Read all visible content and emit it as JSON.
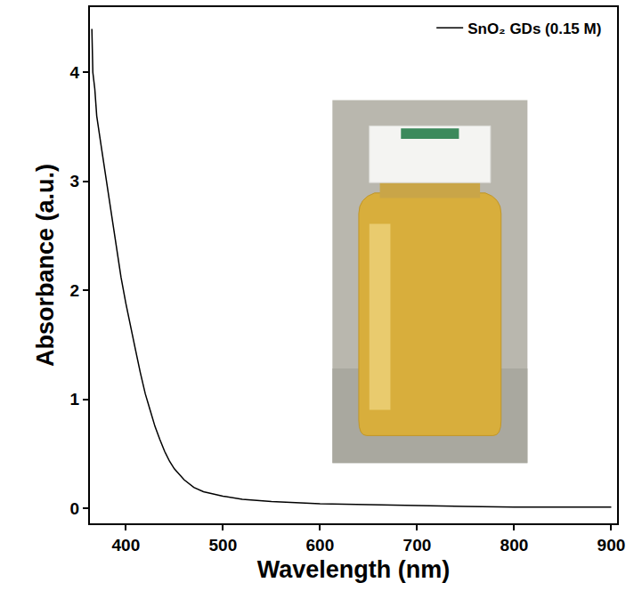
{
  "chart_data": {
    "type": "line",
    "x_label": "Wavelength (nm)",
    "y_label": "Absorbance (a.u.)",
    "x": [
      365,
      366,
      368,
      370,
      375,
      380,
      385,
      390,
      395,
      400,
      405,
      410,
      415,
      420,
      425,
      430,
      435,
      440,
      445,
      450,
      460,
      470,
      480,
      490,
      500,
      520,
      550,
      600,
      650,
      700,
      750,
      800,
      850,
      900
    ],
    "series": [
      {
        "name": "SnO₂ GDs (0.15 M)",
        "color": "#000000",
        "values": [
          4.4,
          4.0,
          3.85,
          3.6,
          3.3,
          3.0,
          2.7,
          2.4,
          2.12,
          1.88,
          1.65,
          1.45,
          1.24,
          1.05,
          0.9,
          0.75,
          0.63,
          0.52,
          0.43,
          0.36,
          0.26,
          0.19,
          0.15,
          0.13,
          0.11,
          0.08,
          0.06,
          0.04,
          0.03,
          0.02,
          0.015,
          0.01,
          0.01,
          0.01
        ]
      }
    ],
    "xlim": [
      363,
      906
    ],
    "ylim": [
      -0.14,
      4.6
    ],
    "xticks": [
      400,
      500,
      600,
      700,
      800,
      900
    ],
    "yticks": [
      0,
      1,
      2,
      3,
      4
    ],
    "grid": false,
    "legend": "top right"
  }
}
